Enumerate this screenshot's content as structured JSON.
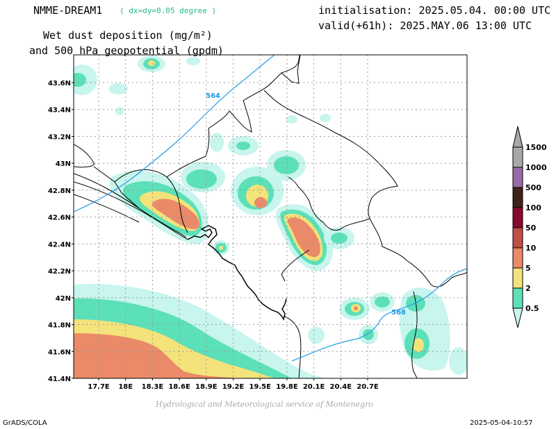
{
  "header": {
    "model": "NMME-DREAM1",
    "resolution": "( dx=dy=0.05 degree )",
    "title_line1": "Wet dust deposition (mg/m²)",
    "title_line2": "and 500 hPa geopotential (gpdm)",
    "init": "initialisation: 2025.05.04. 00:00 UTC",
    "valid": "valid(+61h): 2025.MAY.06 13:00 UTC"
  },
  "map": {
    "lat_ticks": [
      "43.6N",
      "43.4N",
      "43.2N",
      "43N",
      "42.8N",
      "42.6N",
      "42.4N",
      "42.2N",
      "42N",
      "41.8N",
      "41.6N",
      "41.4N"
    ],
    "lon_ticks": [
      "17.7E",
      "18E",
      "18.3E",
      "18.6E",
      "18.9E",
      "19.2E",
      "19.5E",
      "19.8E",
      "20.1E",
      "20.4E",
      "20.7E"
    ],
    "contour_labels": [
      "564",
      "568"
    ],
    "contour_color": "#1e9be6"
  },
  "legend": {
    "levels": [
      "0.5",
      "2",
      "5",
      "10",
      "50",
      "100",
      "500",
      "1000",
      "1500"
    ],
    "colors": [
      "#c8f5ee",
      "#5ce0b8",
      "#f4e27a",
      "#ea8a68",
      "#c24e46",
      "#8a0a2e",
      "#3e2418",
      "#9a6aa6",
      "#a8a8a8"
    ]
  },
  "footer": {
    "credit": "Hydrological and Meteorological service of Montenegro",
    "left": "GrADS/COLA",
    "right": "2025-05-04-10:57"
  }
}
